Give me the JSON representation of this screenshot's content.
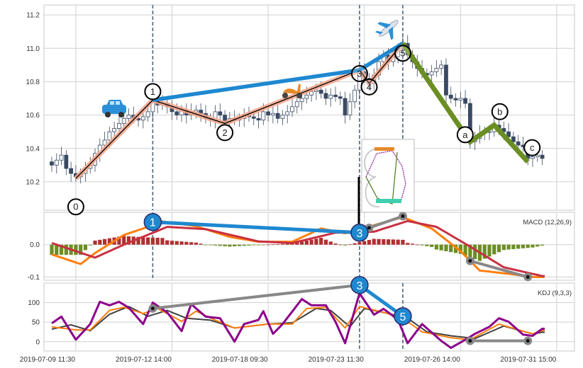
{
  "chart_data": [
    {
      "type": "candlestick",
      "panel": "price",
      "ylim": [
        10.03,
        11.26
      ],
      "yticks": [
        10.2,
        10.4,
        10.6,
        10.8,
        11.0,
        11.2
      ],
      "grid": true,
      "candles": {
        "close": [
          10.3,
          10.33,
          10.36,
          10.28,
          10.25,
          10.23,
          10.25,
          10.28,
          10.3,
          10.37,
          10.42,
          10.45,
          10.5,
          10.52,
          10.55,
          10.58,
          10.6,
          10.58,
          10.57,
          10.59,
          10.62,
          10.68,
          10.66,
          10.67,
          10.65,
          10.62,
          10.6,
          10.63,
          10.6,
          10.62,
          10.63,
          10.61,
          10.58,
          10.57,
          10.62,
          10.6,
          10.56,
          10.58,
          10.57,
          10.58,
          10.6,
          10.59,
          10.58,
          10.57,
          10.62,
          10.6,
          10.61,
          10.58,
          10.6,
          10.62,
          10.65,
          10.68,
          10.7,
          10.72,
          10.74,
          10.75,
          10.73,
          10.7,
          10.72,
          10.71,
          10.7,
          10.6,
          10.68,
          10.75,
          10.86,
          10.82,
          10.79,
          10.84,
          10.92,
          10.96,
          10.92,
          10.95,
          11.0,
          11.03,
          10.96,
          10.92,
          10.88,
          10.85,
          10.84,
          10.86,
          10.88,
          10.9,
          10.72,
          10.7,
          10.69,
          10.7,
          10.67,
          10.44,
          10.46,
          10.49,
          10.5,
          10.5,
          10.54,
          10.52,
          10.5,
          10.47,
          10.44,
          10.42,
          10.41,
          10.34,
          10.35,
          10.36,
          10.34
        ]
      },
      "waves": [
        {
          "label": "0",
          "index": 5,
          "price": 10.22
        },
        {
          "label": "1",
          "index": 21,
          "price": 10.69
        },
        {
          "label": "2",
          "index": 36,
          "price": 10.55
        },
        {
          "label": "3",
          "index": 64,
          "price": 10.87
        },
        {
          "label": "4",
          "index": 66,
          "price": 10.79
        },
        {
          "label": "5",
          "index": 73,
          "price": 11.03
        },
        {
          "label": "a",
          "index": 87,
          "price": 10.44
        },
        {
          "label": "b",
          "index": 92,
          "price": 10.54
        },
        {
          "label": "c",
          "index": 99,
          "price": 10.32
        }
      ],
      "vlines": [
        21,
        64,
        73
      ],
      "icons": [
        "car-icon",
        "scooter-icon",
        "airplane-icon"
      ]
    },
    {
      "type": "line",
      "panel": "macd",
      "label": "MACD (12,26,9)",
      "ylim": [
        -0.11,
        0.1
      ],
      "yticks": [
        0.0,
        -0.1
      ],
      "series": [
        {
          "key": "dif",
          "color": "#ff7f0e",
          "x": [
            0,
            6,
            9,
            15,
            19,
            23,
            30,
            37,
            43,
            50,
            56,
            61,
            67,
            73,
            79,
            85,
            89,
            95,
            100,
            102
          ],
          "y": [
            -0.03,
            -0.06,
            -0.026,
            0.03,
            0.05,
            0.072,
            0.057,
            0.024,
            0.009,
            0.009,
            0.05,
            0.035,
            0.06,
            0.085,
            0.05,
            -0.02,
            -0.08,
            -0.09,
            -0.1,
            -0.1
          ]
        },
        {
          "key": "dea",
          "color": "#c83040",
          "x": [
            0,
            9,
            15,
            24,
            32,
            43,
            50,
            59,
            67,
            74,
            80,
            87,
            94,
            102
          ],
          "y": [
            0.005,
            -0.04,
            0.0,
            0.055,
            0.048,
            0.01,
            0.005,
            0.037,
            0.04,
            0.073,
            0.055,
            -0.006,
            -0.07,
            -0.097
          ]
        }
      ],
      "histogram_colors": {
        "positive": "#b03030",
        "negative": "#6b8e23"
      },
      "annotations": {
        "circles": [
          {
            "label": "1",
            "index": 21,
            "value": 0.07
          },
          {
            "label": "3",
            "index": 64,
            "value": 0.037
          }
        ],
        "gray_segments": [
          [
            [
              66,
              0.052
            ],
            [
              73,
              0.088
            ]
          ],
          [
            [
              87,
              -0.05
            ],
            [
              99,
              -0.1
            ]
          ]
        ]
      },
      "vlines": [
        21,
        64
      ]
    },
    {
      "type": "line",
      "panel": "kdj",
      "label": "KDJ (9,3,3)",
      "ylim": [
        -24,
        150
      ],
      "yticks": [
        0,
        50,
        100
      ],
      "series": [
        {
          "key": "j",
          "color": "#8b008b",
          "x": [
            0,
            2,
            5,
            8,
            10,
            12,
            14,
            16,
            19,
            21,
            24,
            27,
            29,
            32,
            35,
            38,
            40,
            43,
            44,
            46,
            48,
            52,
            54,
            57,
            59,
            61,
            64,
            67,
            69,
            72,
            74,
            77,
            81,
            83,
            86,
            88,
            91,
            93,
            95,
            98,
            100,
            102
          ],
          "y": [
            47,
            64,
            5,
            45,
            102,
            93,
            102,
            87,
            45,
            100,
            75,
            27,
            96,
            64,
            60,
            0,
            45,
            56,
            78,
            20,
            45,
            109,
            93,
            93,
            51,
            -4,
            124,
            69,
            84,
            56,
            -4,
            45,
            2,
            -16,
            5,
            20,
            38,
            60,
            51,
            18,
            15,
            33
          ]
        },
        {
          "key": "k",
          "color": "#ff7f0e",
          "x": [
            0,
            5,
            8,
            12,
            15,
            19,
            22,
            27,
            30,
            34,
            38,
            45,
            50,
            53,
            57,
            61,
            64,
            69,
            73,
            77,
            83,
            87,
            93,
            100,
            102
          ],
          "y": [
            38,
            30,
            30,
            80,
            88,
            72,
            85,
            52,
            78,
            55,
            35,
            45,
            45,
            85,
            88,
            35,
            90,
            75,
            60,
            25,
            10,
            5,
            45,
            20,
            28
          ]
        },
        {
          "key": "d",
          "color": "#404040",
          "x": [
            0,
            4,
            8,
            12,
            16,
            20,
            24,
            28,
            33,
            38,
            45,
            50,
            55,
            58,
            62,
            65,
            70,
            74,
            78,
            83,
            88,
            94,
            100,
            102
          ],
          "y": [
            32,
            43,
            28,
            70,
            90,
            65,
            80,
            60,
            55,
            35,
            45,
            48,
            85,
            80,
            38,
            85,
            72,
            60,
            25,
            15,
            8,
            40,
            20,
            24
          ]
        }
      ],
      "annotations": {
        "circles": [
          {
            "label": "3",
            "index": 64,
            "value": 145
          },
          {
            "label": "5",
            "index": 73,
            "value": 65
          }
        ],
        "gray_segments": [
          [
            [
              21,
              85
            ],
            [
              64,
              145
            ]
          ],
          [
            [
              87,
              2
            ],
            [
              99,
              2
            ]
          ]
        ]
      },
      "vlines": [
        64,
        73
      ]
    }
  ],
  "xaxis": {
    "tick_indices": [
      5,
      25,
      45,
      65,
      85,
      105
    ],
    "tick_labels": [
      "2019-07-09 11:30",
      "2019-07-12 14:00",
      "2019-07-18 09:30",
      "2019-07-23 11:30",
      "2019-07-26 14:00",
      "2019-07-31 15:00"
    ]
  },
  "colors": {
    "up_candle": "#ffffff",
    "down_candle": "#3a4a63",
    "wave_trace": "#f4a58a",
    "wave_line": "#000000",
    "impulse_link": "#1e88d0",
    "correction": "#6b8e23",
    "grid": "#d0d0d0"
  }
}
